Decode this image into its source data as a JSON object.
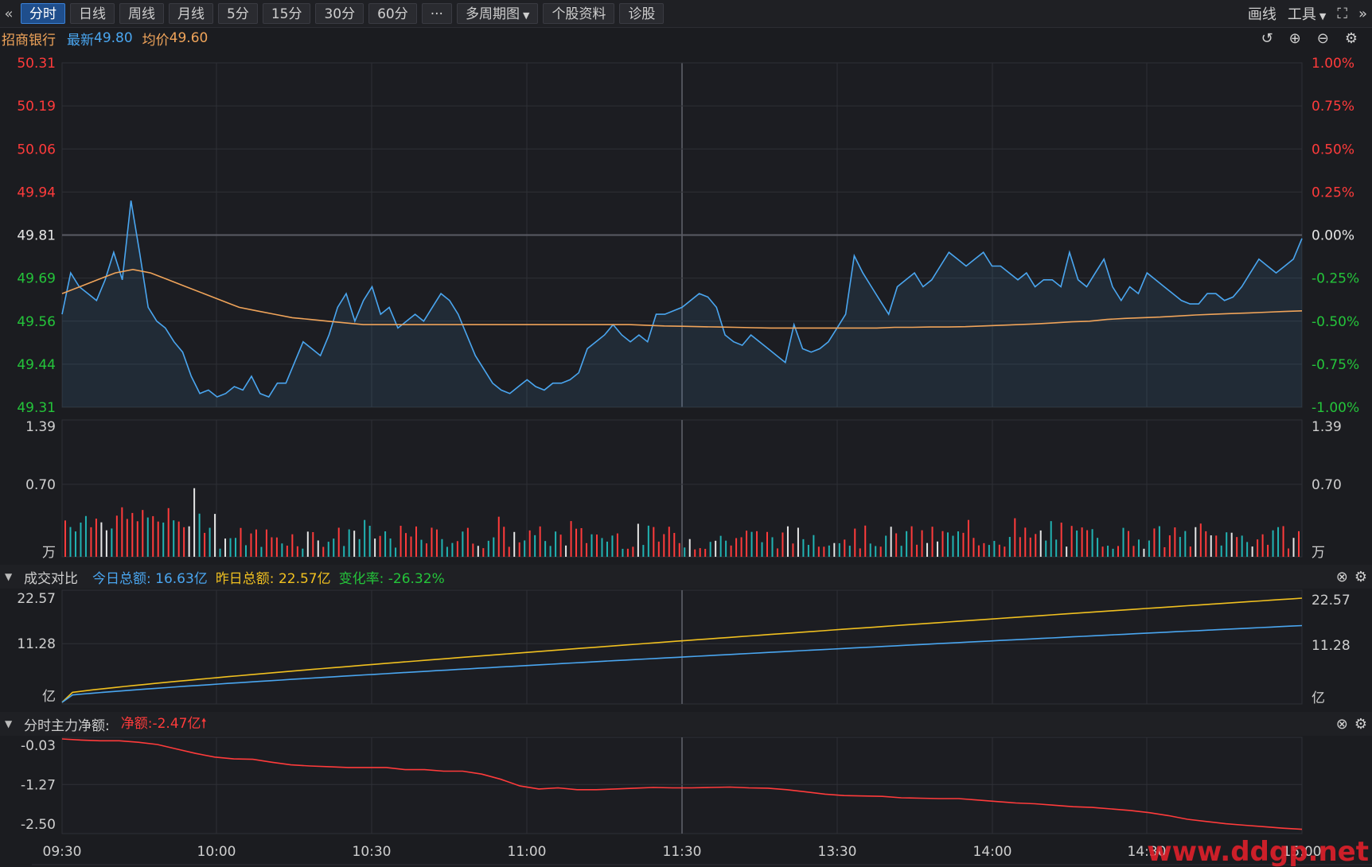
{
  "toolbar": {
    "tabs": [
      "分时",
      "日线",
      "周线",
      "月线",
      "5分",
      "15分",
      "30分",
      "60分",
      "···",
      "多周期图",
      "个股资料",
      "诊股"
    ],
    "active_tab": 0,
    "right": {
      "draw": "画线",
      "tools": "工具"
    }
  },
  "info": {
    "name": "招商银行",
    "latest_label": "最新",
    "latest": "49.80",
    "avg_label": "均价",
    "avg": "49.60"
  },
  "colors": {
    "up": "#ff3b3b",
    "down": "#24c43a",
    "price": "#4aa6f0",
    "avg": "#f0a45a",
    "yellow": "#f0c020",
    "bg": "#1b1c20",
    "grid": "#2e3036"
  },
  "time_labels": [
    "09:30",
    "10:00",
    "10:30",
    "11:00",
    "11:30",
    "13:30",
    "14:00",
    "14:30",
    "15:00"
  ],
  "watermark": "www.ddgp.net",
  "price_panel": {
    "left_ticks": [
      "50.31",
      "50.19",
      "50.06",
      "49.94",
      "49.81",
      "49.69",
      "49.56",
      "49.44",
      "49.31"
    ],
    "right_ticks": [
      "1.00%",
      "0.75%",
      "0.50%",
      "0.25%",
      "0.00%",
      "-0.25%",
      "-0.50%",
      "-0.75%",
      "-1.00%"
    ]
  },
  "volume_panel": {
    "left_ticks": [
      "1.39",
      "0.70",
      "万"
    ],
    "right_ticks": [
      "1.39",
      "0.70",
      "万"
    ]
  },
  "turnover_panel": {
    "title": "成交对比",
    "today_label": "今日总额:",
    "today": "16.63亿",
    "yesterday_label": "昨日总额:",
    "yesterday": "22.57亿",
    "change_label": "变化率:",
    "change": "-26.32%",
    "left_ticks": [
      "22.57",
      "11.28",
      "亿"
    ],
    "right_ticks": [
      "22.57",
      "11.28",
      "亿"
    ]
  },
  "flow_panel": {
    "title": "分时主力净额:",
    "net_label": "净额:",
    "net": "-2.47亿",
    "left_ticks": [
      "-0.03",
      "-1.27",
      "-2.50"
    ]
  },
  "chart_data": [
    {
      "type": "line",
      "title": "",
      "x_range": [
        "09:30",
        "15:00"
      ],
      "ylim": [
        49.31,
        50.31
      ],
      "prev_close": 49.81,
      "series": [
        {
          "name": "最新",
          "values": [
            49.58,
            49.7,
            49.66,
            49.64,
            49.62,
            49.68,
            49.76,
            49.68,
            49.91,
            49.76,
            49.6,
            49.56,
            49.54,
            49.5,
            49.47,
            49.4,
            49.35,
            49.36,
            49.34,
            49.35,
            49.37,
            49.36,
            49.4,
            49.35,
            49.34,
            49.38,
            49.38,
            49.44,
            49.5,
            49.48,
            49.46,
            49.52,
            49.6,
            49.64,
            49.56,
            49.62,
            49.66,
            49.58,
            49.6,
            49.54,
            49.56,
            49.58,
            49.56,
            49.6,
            49.64,
            49.62,
            49.58,
            49.52,
            49.46,
            49.42,
            49.38,
            49.36,
            49.35,
            49.37,
            49.39,
            49.37,
            49.36,
            49.38,
            49.38,
            49.39,
            49.41,
            49.48,
            49.5,
            49.52,
            49.55,
            49.52,
            49.5,
            49.52,
            49.5,
            49.58,
            49.58,
            49.59,
            49.6,
            49.62,
            49.64,
            49.63,
            49.6,
            49.52,
            49.5,
            49.49,
            49.52,
            49.5,
            49.48,
            49.46,
            49.44,
            49.55,
            49.48,
            49.47,
            49.48,
            49.5,
            49.54,
            49.58,
            49.75,
            49.7,
            49.66,
            49.62,
            49.58,
            49.66,
            49.68,
            49.7,
            49.66,
            49.68,
            49.72,
            49.76,
            49.74,
            49.72,
            49.74,
            49.76,
            49.72,
            49.72,
            49.7,
            49.68,
            49.7,
            49.66,
            49.68,
            49.68,
            49.66,
            49.76,
            49.68,
            49.66,
            49.7,
            49.74,
            49.66,
            49.62,
            49.66,
            49.64,
            49.7,
            49.68,
            49.66,
            49.64,
            49.62,
            49.61,
            49.61,
            49.64,
            49.64,
            49.62,
            49.63,
            49.66,
            49.7,
            49.74,
            49.72,
            49.7,
            49.72,
            49.74,
            49.8
          ]
        },
        {
          "name": "均价",
          "values": [
            49.64,
            49.66,
            49.68,
            49.7,
            49.71,
            49.7,
            49.68,
            49.66,
            49.64,
            49.62,
            49.6,
            49.59,
            49.58,
            49.57,
            49.565,
            49.56,
            49.555,
            49.55,
            49.55,
            49.55,
            49.55,
            49.55,
            49.55,
            49.55,
            49.55,
            49.55,
            49.55,
            49.55,
            49.55,
            49.55,
            49.55,
            49.55,
            49.55,
            49.548,
            49.546,
            49.545,
            49.544,
            49.543,
            49.542,
            49.541,
            49.54,
            49.54,
            49.54,
            49.54,
            49.54,
            49.54,
            49.54,
            49.542,
            49.542,
            49.543,
            49.543,
            49.544,
            49.546,
            49.548,
            49.55,
            49.552,
            49.555,
            49.558,
            49.56,
            49.565,
            49.568,
            49.57,
            49.572,
            49.575,
            49.578,
            49.58,
            49.582,
            49.584,
            49.586,
            49.588,
            49.59
          ]
        }
      ],
      "volume_ylim": [
        0,
        1.39
      ],
      "volume_unit": "万"
    },
    {
      "type": "line",
      "title": "成交对比",
      "ylim": [
        0,
        22.57
      ],
      "unit": "亿",
      "series": [
        {
          "name": "今日总额",
          "end": 16.63
        },
        {
          "name": "昨日总额",
          "end": 22.57
        }
      ]
    },
    {
      "type": "line",
      "title": "分时主力净额",
      "ylim": [
        -2.5,
        -0.03
      ],
      "unit": "亿",
      "series": [
        {
          "name": "净额",
          "values": [
            -0.03,
            -0.06,
            -0.08,
            -0.08,
            -0.12,
            -0.18,
            -0.3,
            -0.42,
            -0.52,
            -0.57,
            -0.58,
            -0.66,
            -0.73,
            -0.76,
            -0.78,
            -0.8,
            -0.8,
            -0.8,
            -0.86,
            -0.86,
            -0.9,
            -0.9,
            -0.98,
            -1.12,
            -1.3,
            -1.38,
            -1.35,
            -1.4,
            -1.4,
            -1.38,
            -1.36,
            -1.34,
            -1.35,
            -1.35,
            -1.34,
            -1.33,
            -1.35,
            -1.36,
            -1.4,
            -1.46,
            -1.52,
            -1.56,
            -1.57,
            -1.58,
            -1.62,
            -1.63,
            -1.64,
            -1.64,
            -1.68,
            -1.72,
            -1.76,
            -1.78,
            -1.82,
            -1.86,
            -1.88,
            -1.92,
            -1.96,
            -2.02,
            -2.1,
            -2.2,
            -2.26,
            -2.32,
            -2.36,
            -2.4,
            -2.44,
            -2.47
          ]
        }
      ]
    }
  ]
}
